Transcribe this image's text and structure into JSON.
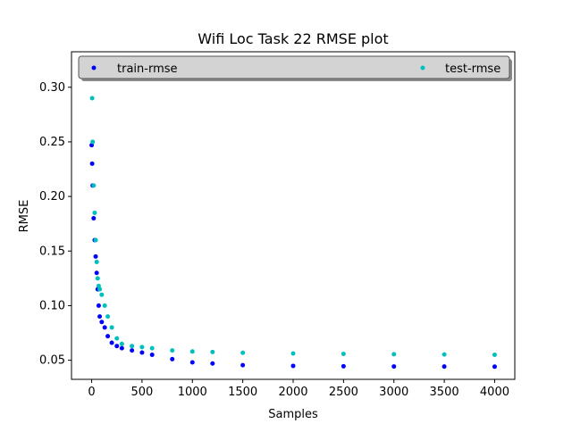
{
  "chart_data": {
    "type": "scatter",
    "title": "Wifi Loc Task 22 RMSE plot",
    "xlabel": "Samples",
    "ylabel": "RMSE",
    "xlim": [
      -200,
      4200
    ],
    "ylim": [
      0.0325,
      0.3325
    ],
    "xticks": [
      0,
      500,
      1000,
      1500,
      2000,
      2500,
      3000,
      3500,
      4000
    ],
    "yticks": [
      0.05,
      0.1,
      0.15,
      0.2,
      0.25,
      0.3
    ],
    "xtick_labels": [
      "0",
      "500",
      "1000",
      "1500",
      "2000",
      "2500",
      "3000",
      "3500",
      "4000"
    ],
    "ytick_labels": [
      "0.05",
      "0.10",
      "0.15",
      "0.20",
      "0.25",
      "0.30"
    ],
    "grid": false,
    "legend": {
      "placement": "top",
      "entries": [
        "train-rmse",
        "test-rmse"
      ]
    },
    "series": [
      {
        "name": "train-rmse",
        "color": "#0000ff",
        "x": [
          0,
          5,
          10,
          20,
          30,
          40,
          50,
          60,
          70,
          80,
          100,
          130,
          160,
          200,
          250,
          300,
          400,
          500,
          600,
          800,
          1000,
          1200,
          1500,
          2000,
          2500,
          3000,
          3500,
          4000
        ],
        "y": [
          0.247,
          0.23,
          0.21,
          0.18,
          0.16,
          0.145,
          0.13,
          0.115,
          0.1,
          0.09,
          0.085,
          0.08,
          0.072,
          0.066,
          0.063,
          0.061,
          0.059,
          0.057,
          0.055,
          0.051,
          0.048,
          0.047,
          0.0455,
          0.0448,
          0.0445,
          0.0443,
          0.0442,
          0.0441
        ]
      },
      {
        "name": "test-rmse",
        "color": "#00bfbf",
        "x": [
          0,
          5,
          10,
          20,
          30,
          40,
          50,
          60,
          70,
          80,
          100,
          130,
          160,
          200,
          250,
          300,
          400,
          500,
          600,
          800,
          1000,
          1200,
          1500,
          2000,
          2500,
          3000,
          3500,
          4000
        ],
        "y": [
          0.31,
          0.29,
          0.25,
          0.21,
          0.185,
          0.16,
          0.14,
          0.125,
          0.118,
          0.115,
          0.11,
          0.1,
          0.09,
          0.08,
          0.07,
          0.065,
          0.063,
          0.062,
          0.061,
          0.059,
          0.058,
          0.0575,
          0.0568,
          0.0562,
          0.0558,
          0.0555,
          0.0553,
          0.055
        ]
      }
    ]
  }
}
